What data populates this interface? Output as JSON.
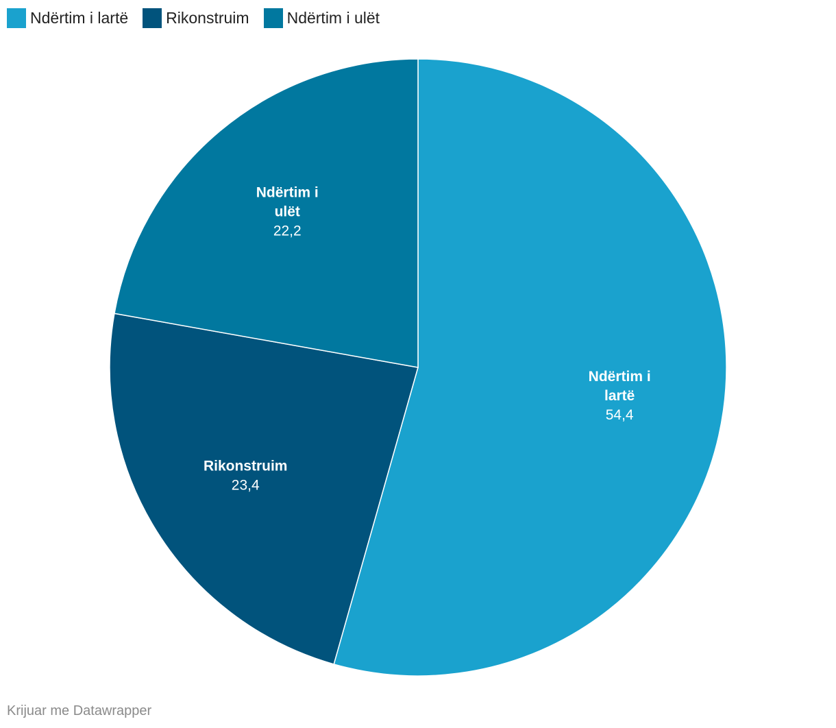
{
  "chart_data": {
    "type": "pie",
    "title": "",
    "categories": [
      "Ndërtim i lartë",
      "Rikonstruim",
      "Ndërtim i ulët"
    ],
    "values": [
      54.4,
      23.4,
      22.2
    ],
    "value_labels": [
      "54,4",
      "23,4",
      "22,2"
    ],
    "slice_labels": [
      [
        "Ndërtim i",
        "lartë"
      ],
      [
        "Rikonstruim"
      ],
      [
        "Ndërtim i",
        "ulët"
      ]
    ],
    "colors": [
      "#1aa2ce",
      "#01537c",
      "#01789f"
    ],
    "legend_position": "top-left",
    "start_angle_deg": 0,
    "direction": "clockwise"
  },
  "legend": {
    "items": [
      {
        "label": "Ndërtim i lartë",
        "color": "#1aa2ce"
      },
      {
        "label": "Rikonstruim",
        "color": "#01537c"
      },
      {
        "label": "Ndërtim i ulët",
        "color": "#01789f"
      }
    ]
  },
  "footer": {
    "credit": "Krijuar me Datawrapper"
  }
}
